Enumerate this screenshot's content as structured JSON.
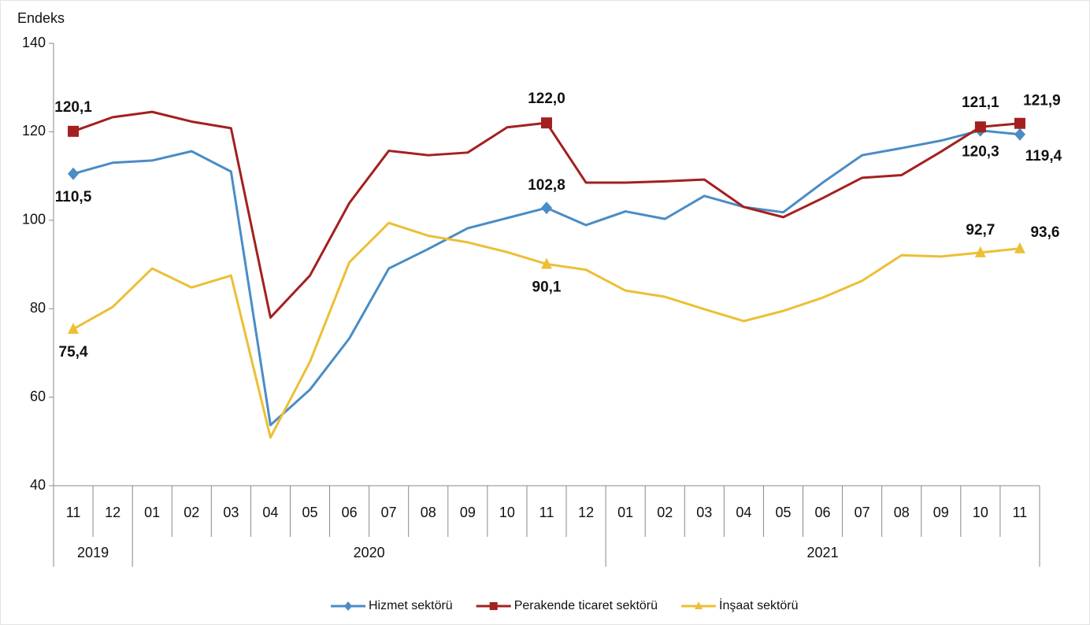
{
  "chart_data": {
    "type": "line",
    "y_label": "Endeks",
    "categories": [
      "11",
      "12",
      "01",
      "02",
      "03",
      "04",
      "05",
      "06",
      "07",
      "08",
      "09",
      "10",
      "11",
      "12",
      "01",
      "02",
      "03",
      "04",
      "05",
      "06",
      "07",
      "08",
      "09",
      "10",
      "11"
    ],
    "category_groups": [
      {
        "label": "2019",
        "span": 2
      },
      {
        "label": "2020",
        "span": 12
      },
      {
        "label": "2021",
        "span": 11
      }
    ],
    "series": [
      {
        "name": "Hizmet sektörü",
        "color": "#4a8cc4",
        "marker": "diamond",
        "values": [
          110.5,
          113,
          113.5,
          115.6,
          111,
          53.7,
          61.7,
          73.3,
          89.1,
          93.5,
          98.2,
          100.5,
          102.8,
          98.9,
          102,
          100.3,
          105.5,
          103,
          101.8,
          108.5,
          114.7,
          116.3,
          118,
          120.3,
          119.4
        ],
        "value_labels": [
          "110,5",
          null,
          null,
          null,
          null,
          null,
          null,
          null,
          null,
          null,
          null,
          null,
          "102,8",
          null,
          null,
          null,
          null,
          null,
          null,
          null,
          null,
          null,
          null,
          "120,3",
          "119,4"
        ]
      },
      {
        "name": "Perakende ticaret sektörü",
        "color": "#a3201f",
        "marker": "square",
        "values": [
          120.1,
          123.3,
          124.5,
          122.3,
          120.8,
          78,
          87.5,
          103.9,
          115.7,
          114.7,
          115.3,
          121,
          122,
          108.5,
          108.5,
          108.8,
          109.2,
          103,
          100.7,
          105,
          109.6,
          110.2,
          115.5,
          121.1,
          121.9
        ],
        "value_labels": [
          "120,1",
          null,
          null,
          null,
          null,
          null,
          null,
          null,
          null,
          null,
          null,
          null,
          "122,0",
          null,
          null,
          null,
          null,
          null,
          null,
          null,
          null,
          null,
          null,
          "121,1",
          "121,9"
        ]
      },
      {
        "name": "İnşaat sektörü",
        "color": "#ecbf35",
        "marker": "triangle",
        "values": [
          75.4,
          80.4,
          89.1,
          84.8,
          87.5,
          50.9,
          68,
          90.5,
          99.4,
          96.5,
          95,
          92.8,
          90.1,
          88.8,
          84.1,
          82.7,
          79.9,
          77.2,
          79.5,
          82.5,
          86.3,
          92.1,
          91.8,
          92.7,
          93.6
        ],
        "value_labels": [
          "75,4",
          null,
          null,
          null,
          null,
          null,
          null,
          null,
          null,
          null,
          null,
          null,
          "90,1",
          null,
          null,
          null,
          null,
          null,
          null,
          null,
          null,
          null,
          null,
          "92,7",
          "93,6"
        ]
      }
    ],
    "ylim": [
      40,
      140
    ],
    "yticks": [
      40,
      60,
      80,
      100,
      120,
      140
    ],
    "grid": false,
    "legend": "bottom"
  }
}
